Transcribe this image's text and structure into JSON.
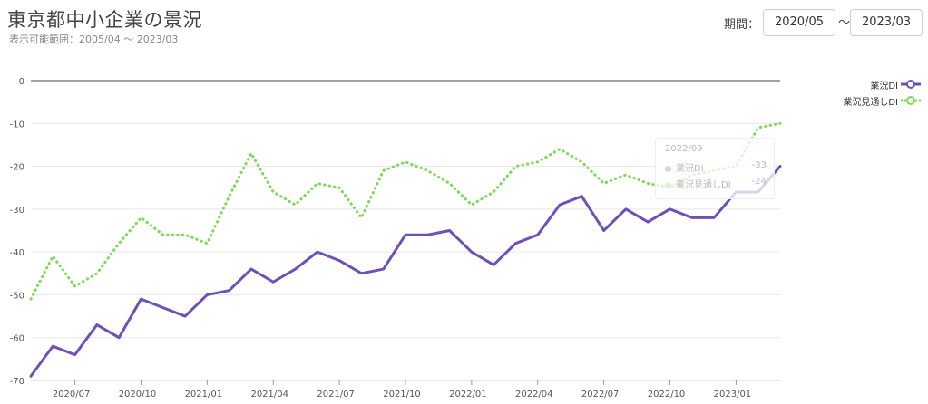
{
  "header": {
    "title": "東京都中小企業の景況",
    "subtitle": "表示可能範囲：2005/04 ～ 2023/03",
    "period_label": "期間：",
    "from_value": "2020/05",
    "tilde": "～",
    "to_value": "2023/03"
  },
  "legend": {
    "items": [
      {
        "label": "業況DI",
        "color": "#6f4fb8",
        "style": "solid"
      },
      {
        "label": "業況見通しDI",
        "color": "#7ed957",
        "style": "dotted"
      }
    ]
  },
  "tooltip": {
    "title": "2022/09",
    "rows": [
      {
        "label": "業況DI",
        "value": "-33"
      },
      {
        "label": "業況見通しDI",
        "value": "-24"
      }
    ]
  },
  "chart_data": {
    "type": "line",
    "x": [
      "2020/05",
      "2020/06",
      "2020/07",
      "2020/08",
      "2020/09",
      "2020/10",
      "2020/11",
      "2020/12",
      "2021/01",
      "2021/02",
      "2021/03",
      "2021/04",
      "2021/05",
      "2021/06",
      "2021/07",
      "2021/08",
      "2021/09",
      "2021/10",
      "2021/11",
      "2021/12",
      "2022/01",
      "2022/02",
      "2022/03",
      "2022/04",
      "2022/05",
      "2022/06",
      "2022/07",
      "2022/08",
      "2022/09",
      "2022/10",
      "2022/11",
      "2022/12",
      "2023/01",
      "2023/02",
      "2023/03"
    ],
    "tick_labels": [
      "2020/07",
      "2020/10",
      "2021/01",
      "2021/04",
      "2021/07",
      "2021/10",
      "2022/01",
      "2022/04",
      "2022/07",
      "2022/10",
      "2023/01"
    ],
    "series": [
      {
        "name": "業況DI",
        "color": "#6f4fb8",
        "dash": "solid",
        "values": [
          -69,
          -62,
          -64,
          -57,
          -60,
          -51,
          -53,
          -55,
          -50,
          -49,
          -44,
          -47,
          -44,
          -40,
          -42,
          -45,
          -44,
          -36,
          -36,
          -35,
          -40,
          -43,
          -38,
          -36,
          -29,
          -27,
          -35,
          -30,
          -33,
          -30,
          -32,
          -32,
          -26,
          -26,
          -20
        ]
      },
      {
        "name": "業況見通しDI",
        "color": "#7ed957",
        "dash": "dotted",
        "values": [
          -51,
          -41,
          -48,
          -45,
          -38,
          -32,
          -36,
          -36,
          -38,
          -27,
          -17,
          -26,
          -29,
          -24,
          -25,
          -32,
          -21,
          -19,
          -21,
          -24,
          -29,
          -26,
          -20,
          -19,
          -16,
          -19,
          -24,
          -22,
          -24,
          -25,
          -22,
          -21,
          -20,
          -11,
          -10
        ]
      }
    ],
    "yticks": [
      0,
      -10,
      -20,
      -30,
      -40,
      -50,
      -60,
      -70
    ],
    "ylim": [
      -70,
      0
    ],
    "grid": true
  }
}
